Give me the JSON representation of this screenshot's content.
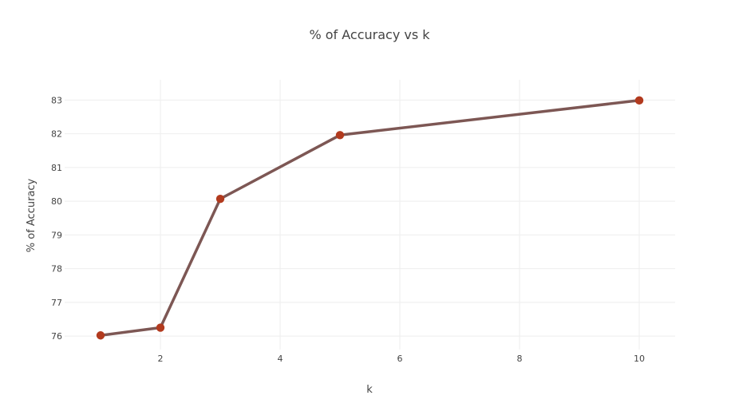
{
  "chart_data": {
    "type": "line",
    "title": "% of Accuracy vs k",
    "xlabel": "k",
    "ylabel": "% of Accuracy",
    "x": [
      1,
      2,
      3,
      5,
      10
    ],
    "series": [
      {
        "values": [
          76.02,
          76.25,
          80.07,
          81.96,
          82.99
        ]
      }
    ],
    "x_ticks": [
      2,
      4,
      6,
      8,
      10
    ],
    "y_ticks": [
      76,
      77,
      78,
      79,
      80,
      81,
      82,
      83
    ],
    "xlim": [
      0.4,
      10.6
    ],
    "ylim": [
      75.6,
      83.6
    ],
    "grid": true,
    "colors": {
      "line": "#7d5754",
      "marker": "#b23a1e",
      "grid": "#eeeeee",
      "text": "#444444"
    }
  }
}
